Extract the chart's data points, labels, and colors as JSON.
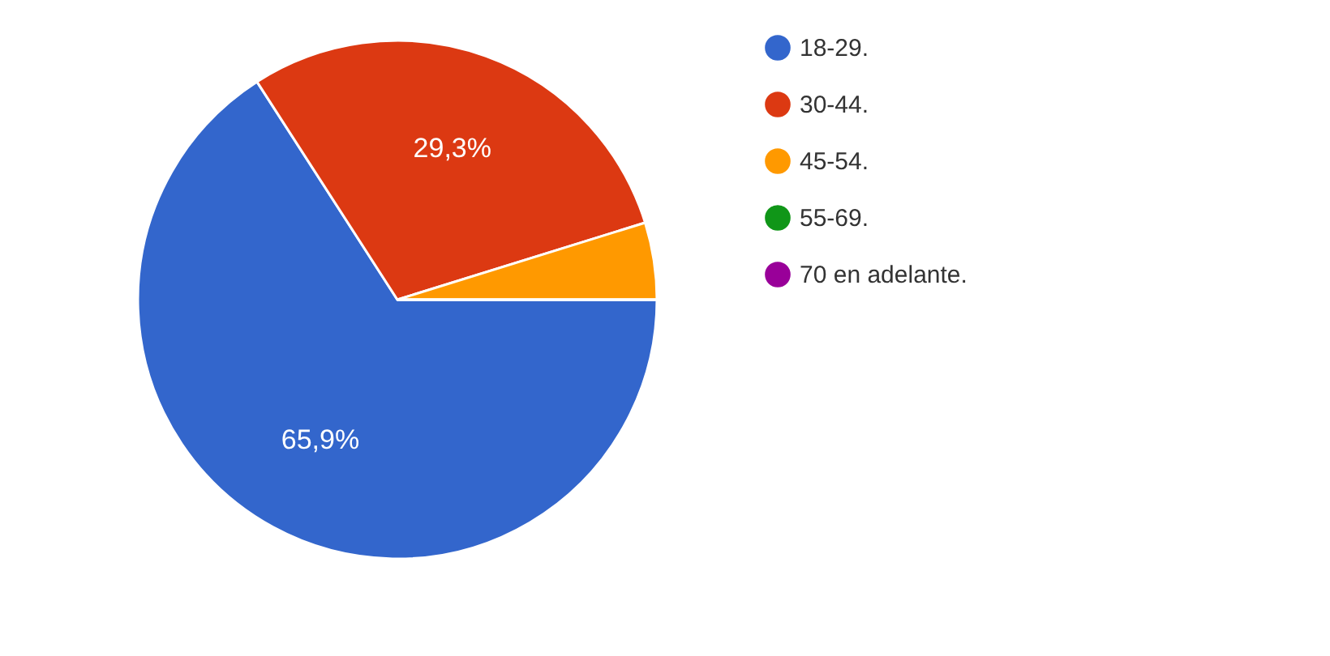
{
  "chart_data": {
    "type": "pie",
    "categories": [
      "18-29.",
      "30-44.",
      "45-54.",
      "55-69.",
      "70 en adelante."
    ],
    "values": [
      65.9,
      29.3,
      4.8,
      0,
      0
    ],
    "colors": [
      "#3366cc",
      "#dc3912",
      "#ff9900",
      "#109618",
      "#990099"
    ],
    "value_labels": [
      "65,9%",
      "29,3%",
      null,
      null,
      null
    ],
    "legend": "right"
  }
}
